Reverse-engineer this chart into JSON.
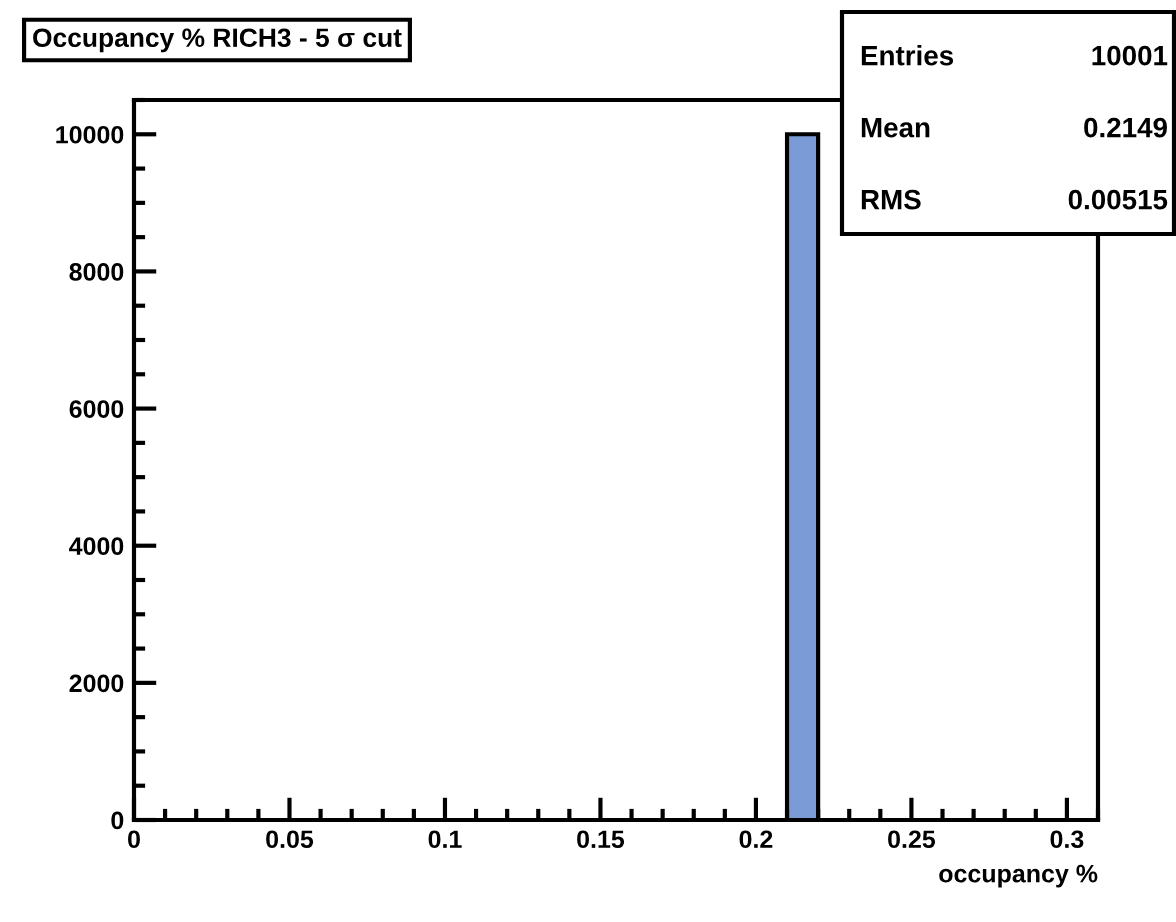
{
  "chart_data": {
    "type": "histogram",
    "title": "Occupancy % RICH3 - 5 σ cut",
    "xlabel": "occupancy %",
    "bins": [
      0,
      0.01,
      0.02,
      0.03,
      0.04,
      0.05,
      0.06,
      0.07,
      0.08,
      0.09,
      0.1,
      0.11,
      0.12,
      0.13,
      0.14,
      0.15,
      0.16,
      0.17,
      0.18,
      0.19,
      0.2,
      0.21,
      0.22,
      0.23,
      0.24,
      0.25,
      0.26,
      0.27,
      0.28,
      0.29,
      0.3,
      0.31
    ],
    "values": [
      0,
      0,
      0,
      0,
      0,
      0,
      0,
      0,
      0,
      0,
      0,
      0,
      0,
      0,
      0,
      0,
      0,
      0,
      0,
      0,
      0,
      10000,
      0,
      0,
      0,
      0,
      0,
      0,
      0,
      0,
      0
    ],
    "color": "#7b9bd6",
    "xlim": [
      0,
      0.31
    ],
    "xticks": [
      0,
      0.05,
      0.1,
      0.15,
      0.2,
      0.25,
      0.3
    ],
    "ylim": [
      0,
      10500
    ],
    "yticks": [
      0,
      2000,
      4000,
      6000,
      8000,
      10000
    ],
    "grid": false,
    "annotations": [
      "Entries",
      "10001",
      "Mean",
      "0.2149",
      "RMS",
      "0.00515"
    ]
  }
}
